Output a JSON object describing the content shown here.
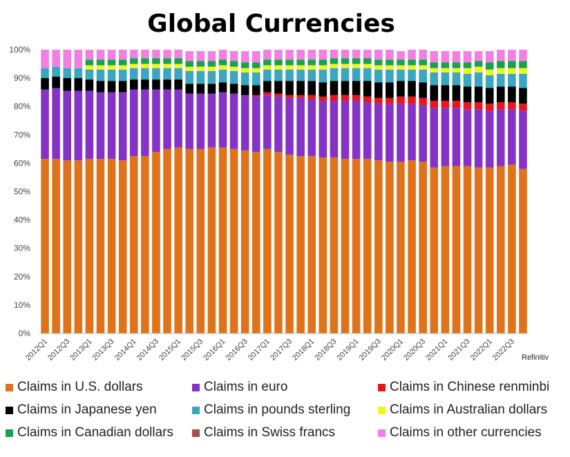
{
  "chart_data": {
    "type": "bar",
    "stacked": true,
    "title": "Global Currencies",
    "source": "Refinitiv",
    "ylim": [
      0,
      100
    ],
    "yticks": [
      "0%",
      "10%",
      "20%",
      "30%",
      "40%",
      "50%",
      "60%",
      "70%",
      "80%",
      "90%",
      "100%"
    ],
    "categories": [
      "2012Q1",
      "2012Q2",
      "2012Q3",
      "2012Q4",
      "2013Q1",
      "2013Q2",
      "2013Q3",
      "2013Q4",
      "2014Q1",
      "2014Q2",
      "2014Q3",
      "2014Q4",
      "2015Q1",
      "2015Q2",
      "2015Q3",
      "2015Q4",
      "2016Q1",
      "2016Q2",
      "2016Q3",
      "2016Q4",
      "2017Q1",
      "2017Q2",
      "2017Q3",
      "2017Q4",
      "2018Q1",
      "2018Q2",
      "2018Q3",
      "2018Q4",
      "2019Q1",
      "2019Q2",
      "2019Q3",
      "2019Q4",
      "2020Q1",
      "2020Q2",
      "2020Q3",
      "2020Q4",
      "2021Q1",
      "2021Q2",
      "2021Q3",
      "2021Q4",
      "2022Q1",
      "2022Q2",
      "2022Q3",
      "2022Q4"
    ],
    "tick_labels": [
      "2012Q1",
      "2012Q3",
      "2013Q1",
      "2013Q3",
      "2014Q1",
      "2014Q3",
      "2015Q1",
      "2015Q3",
      "2016Q1",
      "2016Q3",
      "2017Q1",
      "2017Q3",
      "2018Q1",
      "2018Q3",
      "2019Q1",
      "2019Q3",
      "2020Q1",
      "2020Q3",
      "2021Q1",
      "2021Q3",
      "2022Q1",
      "2022Q3"
    ],
    "series": [
      {
        "name": "Claims in U.S. dollars",
        "color": "#E0731A",
        "values": [
          61.5,
          61.5,
          61.0,
          61.0,
          61.5,
          61.5,
          61.5,
          61.0,
          62.5,
          62.5,
          64.0,
          65.0,
          65.5,
          65.0,
          65.0,
          65.5,
          65.5,
          65.0,
          64.5,
          64.0,
          65.0,
          64.0,
          63.0,
          62.5,
          62.5,
          62.0,
          62.0,
          61.5,
          61.5,
          61.5,
          61.0,
          60.5,
          60.5,
          61.0,
          60.5,
          58.5,
          59.0,
          59.0,
          59.0,
          58.5,
          58.5,
          59.0,
          59.5,
          58.0
        ]
      },
      {
        "name": "Claims in euro",
        "color": "#8533C7",
        "values": [
          24.5,
          25.0,
          24.5,
          24.5,
          24.0,
          23.5,
          23.5,
          24.0,
          23.5,
          23.5,
          22.0,
          21.0,
          20.5,
          19.5,
          19.5,
          19.0,
          19.5,
          19.5,
          19.5,
          19.5,
          19.0,
          19.5,
          20.0,
          20.5,
          20.0,
          20.0,
          20.0,
          20.5,
          20.5,
          20.0,
          20.0,
          20.5,
          20.5,
          20.0,
          20.0,
          21.0,
          20.5,
          20.5,
          20.0,
          20.5,
          20.0,
          20.0,
          19.5,
          20.5
        ]
      },
      {
        "name": "Claims in Chinese renminbi",
        "color": "#E8161C",
        "values": [
          0,
          0,
          0,
          0,
          0,
          0,
          0,
          0,
          0,
          0,
          0,
          0,
          0,
          0,
          0,
          0,
          0,
          0,
          0,
          0.5,
          1.0,
          1.0,
          1.0,
          1.0,
          1.5,
          1.5,
          2.0,
          2.0,
          2.0,
          2.0,
          2.0,
          2.0,
          2.5,
          2.5,
          2.5,
          2.5,
          2.5,
          2.5,
          2.5,
          2.5,
          2.5,
          2.5,
          2.5,
          2.5
        ]
      },
      {
        "name": "Claims in Japanese yen",
        "color": "#000000",
        "values": [
          4.0,
          4.0,
          4.5,
          4.5,
          4.0,
          4.0,
          4.0,
          4.0,
          3.5,
          3.5,
          3.5,
          3.5,
          3.5,
          3.5,
          3.5,
          3.5,
          3.5,
          3.5,
          3.5,
          3.5,
          4.0,
          4.5,
          5.0,
          5.0,
          5.0,
          5.0,
          5.0,
          5.0,
          5.0,
          5.5,
          5.5,
          5.5,
          5.5,
          5.5,
          5.5,
          5.5,
          5.5,
          5.5,
          5.5,
          5.5,
          5.5,
          5.5,
          5.5,
          5.5
        ]
      },
      {
        "name": "Claims in pounds sterling",
        "color": "#3AA6BF",
        "values": [
          3.5,
          3.5,
          3.5,
          3.5,
          3.5,
          4.0,
          4.0,
          4.0,
          4.0,
          4.0,
          4.0,
          4.0,
          4.0,
          4.5,
          4.5,
          4.5,
          4.5,
          4.5,
          4.5,
          4.5,
          4.0,
          4.0,
          4.0,
          4.0,
          4.0,
          4.5,
          4.5,
          4.5,
          4.5,
          4.5,
          4.5,
          4.5,
          4.0,
          4.0,
          4.5,
          4.5,
          4.5,
          4.5,
          4.5,
          5.0,
          4.5,
          4.5,
          4.5,
          5.0
        ]
      },
      {
        "name": "Claims in Australian dollars",
        "color": "#F1F51E",
        "values": [
          0,
          0,
          0,
          0,
          1.5,
          1.5,
          1.5,
          1.5,
          1.5,
          1.5,
          1.5,
          1.5,
          1.5,
          1.5,
          1.5,
          1.5,
          1.5,
          1.5,
          1.5,
          1.5,
          1.5,
          1.5,
          1.5,
          1.5,
          1.5,
          1.5,
          1.5,
          1.5,
          1.5,
          1.5,
          1.5,
          1.5,
          1.5,
          1.5,
          1.5,
          1.5,
          1.5,
          1.5,
          2.0,
          2.0,
          2.0,
          2.0,
          2.0,
          2.0
        ]
      },
      {
        "name": "Claims in Canadian dollars",
        "color": "#16A34A",
        "values": [
          0,
          0,
          0,
          0,
          2.0,
          2.0,
          2.0,
          2.0,
          2.0,
          2.0,
          2.0,
          2.0,
          2.0,
          2.0,
          2.0,
          2.0,
          2.0,
          2.0,
          2.0,
          2.0,
          2.0,
          2.0,
          2.0,
          2.0,
          2.0,
          2.0,
          2.0,
          2.0,
          2.0,
          2.0,
          2.0,
          2.0,
          2.0,
          2.0,
          2.0,
          2.0,
          2.0,
          2.0,
          2.0,
          2.0,
          2.5,
          2.5,
          2.5,
          2.5
        ]
      },
      {
        "name": "Claims in Swiss francs",
        "color": "#A84F45",
        "values": [
          0,
          0,
          0,
          0,
          0,
          0,
          0,
          0,
          0,
          0,
          0,
          0,
          0,
          0,
          0,
          0,
          0,
          0,
          0,
          0,
          0,
          0,
          0,
          0,
          0,
          0,
          0,
          0,
          0,
          0,
          0,
          0,
          0,
          0,
          0,
          0,
          0,
          0,
          0,
          0,
          0,
          0,
          0,
          0
        ]
      },
      {
        "name": "Claims in other currencies",
        "color": "#F280E3",
        "values": [
          6.5,
          6.0,
          6.5,
          6.5,
          3.5,
          3.5,
          3.5,
          3.5,
          3.0,
          3.0,
          3.0,
          3.0,
          3.0,
          3.5,
          3.5,
          3.5,
          3.5,
          3.5,
          4.0,
          4.0,
          3.5,
          3.5,
          3.5,
          3.5,
          3.5,
          3.5,
          3.0,
          3.0,
          3.0,
          3.0,
          3.5,
          3.5,
          3.0,
          3.5,
          3.5,
          4.0,
          4.0,
          4.0,
          4.0,
          3.5,
          4.0,
          4.0,
          4.0,
          4.0
        ]
      }
    ]
  }
}
